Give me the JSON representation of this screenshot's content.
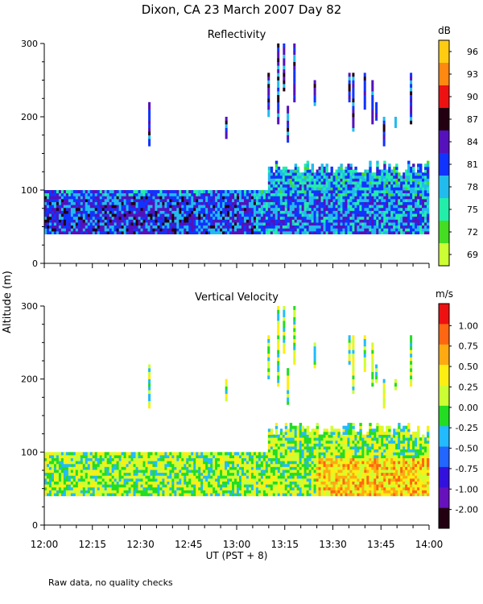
{
  "title": "Dixon, CA 23 March 2007  Day  82",
  "ylabel": "Altitude (m)",
  "xlabel": "UT  (PST + 8)",
  "footnote": "Raw data, no quality checks",
  "x_ticks": [
    "12:00",
    "12:15",
    "12:30",
    "12:45",
    "13:00",
    "13:15",
    "13:30",
    "13:45",
    "14:00"
  ],
  "y_ticks": [
    "0",
    "100",
    "200",
    "300"
  ],
  "colors": {
    "reflectivity": [
      "#ccff33",
      "#44dd22",
      "#22eeaa",
      "#22bbee",
      "#1133ff",
      "#5511bb",
      "#220011",
      "#ee1111",
      "#ff8811",
      "#ffcc11"
    ],
    "velocity": [
      "#220011",
      "#6611bb",
      "#3311dd",
      "#2266ff",
      "#22bbff",
      "#22dd22",
      "#ccff33",
      "#ffee11",
      "#ffaa11",
      "#ff6611",
      "#ee1111"
    ]
  },
  "chart_data": [
    {
      "type": "heatmap",
      "title": "Reflectivity",
      "colorbar_label": "dB",
      "colorbar_ticks": [
        "69",
        "72",
        "75",
        "78",
        "81",
        "84",
        "87",
        "90",
        "93",
        "96"
      ],
      "x_range": [
        "12:00",
        "14:00"
      ],
      "ylim": [
        0,
        300
      ],
      "data_floor_altitude_m": 40,
      "echo_top_altitude_m": {
        "12:00-13:10": 100,
        "13:10-14:00": 120
      },
      "sparse_echoes_m": [
        200,
        300
      ]
    },
    {
      "type": "heatmap",
      "title": "Vertical Velocity",
      "colorbar_label": "m/s",
      "colorbar_ticks": [
        "1.00",
        "0.75",
        "0.50",
        "0.25",
        "0.00",
        "-0.25",
        "-0.50",
        "-0.75",
        "-1.00",
        "-2.00"
      ],
      "x_range": [
        "12:00",
        "14:00"
      ],
      "ylim": [
        0,
        300
      ],
      "data_floor_altitude_m": 40,
      "echo_top_altitude_m": {
        "12:00-13:10": 100,
        "13:10-14:00": 120
      },
      "sparse_echoes_m": [
        200,
        300
      ]
    }
  ]
}
